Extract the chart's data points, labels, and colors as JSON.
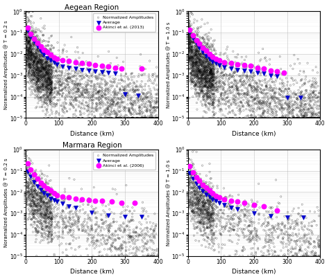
{
  "title_top": "Aegean Region",
  "title_bottom": "Marmara Region",
  "xlabel": "Distance (km)",
  "ylabel_02": "Noramalized Amplitudes @ T = 0.2 s",
  "ylabel_10": "Normalized Amplitudes @ T = 1.0 s",
  "xlim": [
    0,
    400
  ],
  "ylim_log": [
    -5,
    0
  ],
  "legend_labels": [
    "Normalized Amplitudes",
    "Average",
    "Akinci et al. (2013)"
  ],
  "legend_labels_marmara": [
    "Normalized Amplitudes",
    "Average",
    "Akinci et al. (2006)"
  ],
  "scatter_color": "black",
  "avg_color": "#0000cd",
  "ref_color": "#ff00ff",
  "background_color": "#ffffff",
  "n_scatter_aegean": 3000,
  "n_scatter_marmara": 1500,
  "avg_bins_aegean_02": [
    5,
    15,
    25,
    35,
    45,
    55,
    65,
    75,
    85,
    95,
    110,
    130,
    150,
    170,
    190,
    210,
    230,
    250,
    270,
    300,
    340
  ],
  "avg_vals_aegean_02": [
    0.13,
    0.065,
    0.038,
    0.022,
    0.013,
    0.009,
    0.0065,
    0.005,
    0.004,
    0.0033,
    0.0026,
    0.0022,
    0.002,
    0.0018,
    0.0017,
    0.0015,
    0.0014,
    0.0013,
    0.0012,
    0.00013,
    0.00011
  ],
  "ref_bins_aegean_02": [
    5,
    15,
    25,
    35,
    45,
    55,
    65,
    75,
    85,
    95,
    110,
    130,
    150,
    170,
    190,
    210,
    230,
    250,
    270,
    290,
    350
  ],
  "ref_vals_aegean_02": [
    0.17,
    0.09,
    0.05,
    0.033,
    0.022,
    0.016,
    0.012,
    0.009,
    0.007,
    0.006,
    0.005,
    0.0046,
    0.0042,
    0.0038,
    0.0034,
    0.003,
    0.0027,
    0.0025,
    0.0023,
    0.0021,
    0.002
  ],
  "avg_bins_aegean_10": [
    5,
    15,
    25,
    35,
    45,
    55,
    65,
    75,
    85,
    95,
    110,
    130,
    150,
    170,
    190,
    210,
    230,
    250,
    270,
    300,
    340
  ],
  "avg_vals_aegean_10": [
    0.11,
    0.055,
    0.032,
    0.019,
    0.012,
    0.008,
    0.006,
    0.0045,
    0.0038,
    0.003,
    0.0024,
    0.002,
    0.0018,
    0.0016,
    0.0015,
    0.0013,
    0.0012,
    0.001,
    0.0009,
    9e-05,
    9e-05
  ],
  "ref_bins_aegean_10": [
    5,
    15,
    25,
    35,
    45,
    55,
    65,
    75,
    85,
    95,
    110,
    130,
    150,
    170,
    190,
    210,
    230,
    250,
    270,
    290
  ],
  "ref_vals_aegean_10": [
    0.14,
    0.075,
    0.043,
    0.03,
    0.02,
    0.014,
    0.01,
    0.0075,
    0.006,
    0.005,
    0.0042,
    0.0038,
    0.0033,
    0.003,
    0.0027,
    0.0023,
    0.002,
    0.0017,
    0.0015,
    0.0013
  ],
  "avg_bins_marmara_02": [
    5,
    15,
    25,
    35,
    45,
    55,
    65,
    75,
    85,
    95,
    110,
    130,
    150,
    200,
    250,
    300,
    350
  ],
  "avg_vals_marmara_02": [
    0.09,
    0.052,
    0.03,
    0.019,
    0.013,
    0.009,
    0.007,
    0.005,
    0.0042,
    0.0035,
    0.0028,
    0.0022,
    0.0018,
    0.00105,
    0.00078,
    0.00072,
    0.00072
  ],
  "ref_bins_marmara_02": [
    5,
    15,
    25,
    35,
    45,
    55,
    65,
    75,
    85,
    95,
    110,
    130,
    150,
    170,
    190,
    210,
    230,
    260,
    290,
    330
  ],
  "ref_vals_marmara_02": [
    0.22,
    0.115,
    0.065,
    0.042,
    0.028,
    0.02,
    0.015,
    0.012,
    0.009,
    0.007,
    0.006,
    0.0055,
    0.005,
    0.0046,
    0.0042,
    0.004,
    0.0038,
    0.0035,
    0.003,
    0.003
  ],
  "avg_bins_marmara_10": [
    5,
    15,
    25,
    35,
    45,
    55,
    65,
    75,
    85,
    95,
    110,
    130,
    150,
    200,
    250,
    300,
    350
  ],
  "avg_vals_marmara_10": [
    0.075,
    0.044,
    0.026,
    0.016,
    0.011,
    0.0078,
    0.006,
    0.0045,
    0.0038,
    0.003,
    0.0024,
    0.0019,
    0.0016,
    0.001,
    0.00075,
    0.00065,
    0.00065
  ],
  "ref_bins_marmara_10": [
    5,
    15,
    25,
    35,
    45,
    55,
    65,
    75,
    85,
    95,
    110,
    130,
    150,
    170,
    200,
    230,
    270
  ],
  "ref_vals_marmara_10": [
    0.16,
    0.085,
    0.05,
    0.033,
    0.022,
    0.016,
    0.012,
    0.009,
    0.0065,
    0.0055,
    0.0045,
    0.004,
    0.0035,
    0.003,
    0.0025,
    0.0022,
    0.0014
  ]
}
